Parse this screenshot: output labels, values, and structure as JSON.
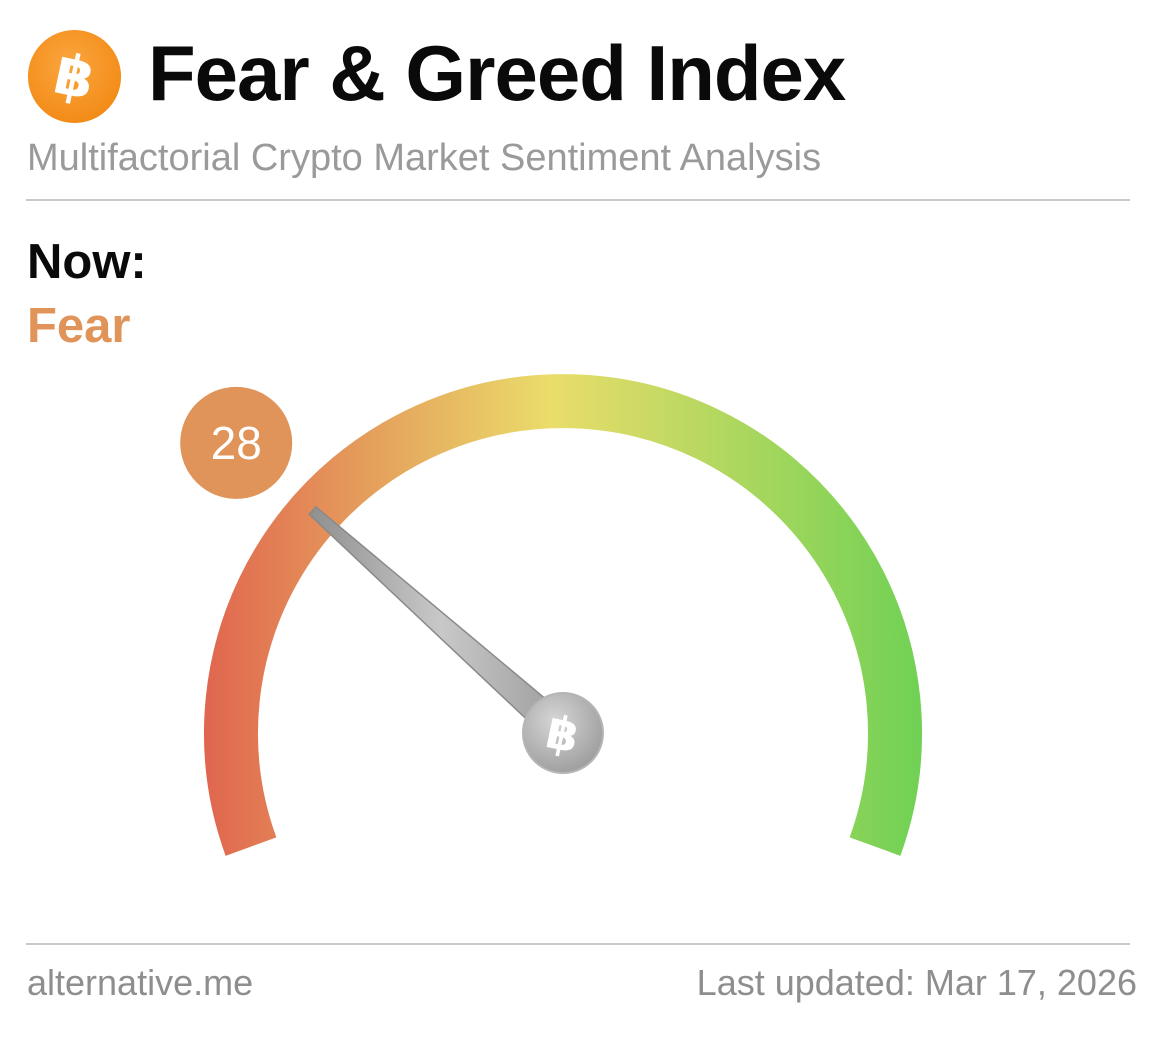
{
  "header": {
    "title": "Fear & Greed Index",
    "subtitle": "Multifactorial Crypto Market Sentiment Analysis",
    "logo_icon": "bitcoin-icon",
    "logo_color": "#f7931a"
  },
  "now": {
    "label": "Now:",
    "classification": "Fear",
    "classification_color": "#e09459"
  },
  "chart_data": {
    "type": "gauge",
    "value": 28,
    "min": 0,
    "max": 100,
    "value_label": "28",
    "classification": "Fear",
    "colors": {
      "low": "#e0664f",
      "mid": "#eadd6a",
      "high": "#6fd154",
      "badge": "#e09459"
    },
    "hub_icon": "bitcoin-icon"
  },
  "footer": {
    "source": "alternative.me",
    "last_updated": "Last updated: Mar 17, 2026"
  }
}
